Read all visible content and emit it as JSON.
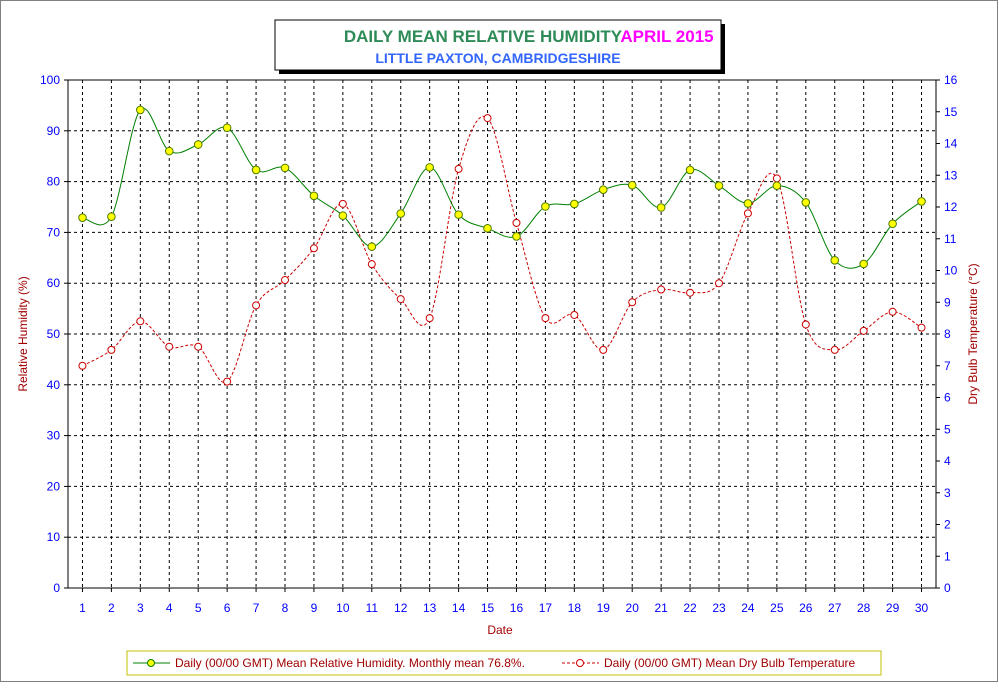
{
  "chart_data": {
    "type": "line",
    "title": "DAILY MEAN RELATIVE HUMIDITY",
    "title_period": "APRIL 2015",
    "subtitle": "LITTLE PAXTON, CAMBRIDGESHIRE",
    "xlabel": "Date",
    "ylabel_left": "Relative Humidity (%)",
    "ylabel_right": "Dry Bulb Temperature (°C)",
    "ylim_left": [
      0,
      100
    ],
    "ylim_right": [
      0,
      16
    ],
    "yticks_left": [
      0,
      10,
      20,
      30,
      40,
      50,
      60,
      70,
      80,
      90,
      100
    ],
    "yticks_right": [
      0,
      1,
      2,
      3,
      4,
      5,
      6,
      7,
      8,
      9,
      10,
      11,
      12,
      13,
      14,
      15,
      16
    ],
    "x": [
      1,
      2,
      3,
      4,
      5,
      6,
      7,
      8,
      9,
      10,
      11,
      12,
      13,
      14,
      15,
      16,
      17,
      18,
      19,
      20,
      21,
      22,
      23,
      24,
      25,
      26,
      27,
      28,
      29,
      30
    ],
    "grid": true,
    "legend_position": "bottom",
    "colors": {
      "title": "#2e8b57",
      "title_period": "#ff00ff",
      "subtitle": "#3366ff",
      "humidity_line": "#008000",
      "humidity_marker": "#ffff00",
      "temperature_line": "#cc0000",
      "tick_labels": "#0000ff",
      "axis_titles": "#a00000"
    },
    "series": [
      {
        "name": "Daily (00/00 GMT) Mean Relative Humidity. Monthly mean 76.8%.",
        "axis": "left",
        "values": [
          72.9,
          73.1,
          94.1,
          86.0,
          87.3,
          90.6,
          82.3,
          82.7,
          77.2,
          73.3,
          67.2,
          73.7,
          82.8,
          73.5,
          70.8,
          69.2,
          75.1,
          75.6,
          78.4,
          79.3,
          74.9,
          82.3,
          79.2,
          75.7,
          79.2,
          75.9,
          64.5,
          63.8,
          71.7,
          76.1
        ]
      },
      {
        "name": "Daily (00/00 GMT) Mean Dry Bulb Temperature",
        "axis": "right",
        "values": [
          7.0,
          7.5,
          8.4,
          7.6,
          7.6,
          6.5,
          8.9,
          9.7,
          10.7,
          12.1,
          10.2,
          9.1,
          8.5,
          13.2,
          14.8,
          11.5,
          8.5,
          8.6,
          7.5,
          9.0,
          9.4,
          9.3,
          9.6,
          11.8,
          12.9,
          8.3,
          7.5,
          8.1,
          8.7,
          8.2
        ]
      }
    ]
  }
}
